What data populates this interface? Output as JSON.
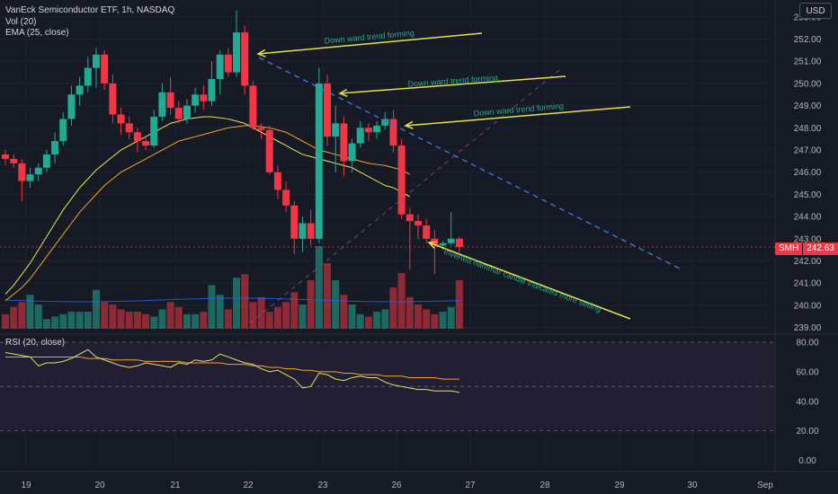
{
  "header": {
    "title": "VanEck Semiconductor ETF, 1h, NASDAQ",
    "indicators": [
      "Vol (20)",
      "EMA (25, close)"
    ],
    "currency_button": "USD"
  },
  "rsi_panel": {
    "label": "RSI (20, close)"
  },
  "price_tag": {
    "symbol": "SMH",
    "value": "242.63"
  },
  "colors": {
    "up": "#22ab94",
    "down": "#f23645",
    "ema": "#f5a623",
    "ema_fast": "#e8e35a",
    "trend": "#3b73e6",
    "arrow": "#e6e23a",
    "annotation": "#22ab94",
    "rsi": "#e8e35a",
    "rsi_ma": "#f5a623"
  },
  "chart_data": {
    "type": "candlestick",
    "title": "VanEck Semiconductor ETF, 1h, NASDAQ",
    "x_axis_labels": [
      "19",
      "20",
      "21",
      "22",
      "23",
      "26",
      "27",
      "28",
      "29",
      "30",
      "Sep"
    ],
    "y_axis": {
      "ticks": [
        "253.00",
        "252.00",
        "251.00",
        "250.00",
        "249.00",
        "248.00",
        "247.00",
        "246.00",
        "245.00",
        "244.00",
        "243.00",
        "242.00",
        "241.00",
        "240.00",
        "239.00"
      ],
      "range": [
        238.7,
        253.6
      ]
    },
    "rsi_axis": {
      "ticks": [
        "80.00",
        "60.00",
        "40.00",
        "20.00",
        "0.00"
      ],
      "bands": [
        20,
        50,
        80
      ]
    },
    "candles": [
      [
        246.8,
        247.0,
        246.3,
        246.6
      ],
      [
        246.6,
        246.8,
        246.2,
        246.4
      ],
      [
        246.4,
        246.6,
        244.7,
        245.6
      ],
      [
        245.6,
        246.2,
        245.3,
        245.9
      ],
      [
        245.9,
        246.4,
        245.6,
        246.2
      ],
      [
        246.2,
        247.0,
        246.0,
        246.8
      ],
      [
        246.8,
        247.8,
        246.4,
        247.4
      ],
      [
        247.4,
        248.7,
        247.2,
        248.4
      ],
      [
        248.4,
        249.9,
        248.1,
        249.5
      ],
      [
        249.5,
        250.3,
        249.0,
        249.9
      ],
      [
        249.9,
        251.2,
        249.6,
        250.7
      ],
      [
        250.7,
        251.6,
        249.8,
        251.3
      ],
      [
        251.3,
        251.5,
        249.7,
        250.0
      ],
      [
        250.0,
        250.4,
        248.2,
        248.6
      ],
      [
        248.6,
        248.9,
        247.7,
        248.2
      ],
      [
        248.2,
        248.5,
        247.5,
        247.8
      ],
      [
        247.8,
        248.0,
        246.9,
        247.4
      ],
      [
        247.4,
        247.6,
        247.0,
        247.2
      ],
      [
        247.2,
        248.8,
        247.1,
        248.5
      ],
      [
        248.5,
        250.0,
        248.3,
        249.6
      ],
      [
        249.6,
        250.3,
        248.6,
        248.9
      ],
      [
        248.9,
        249.2,
        248.2,
        248.4
      ],
      [
        248.4,
        249.3,
        248.2,
        249.0
      ],
      [
        249.0,
        249.8,
        248.7,
        249.5
      ],
      [
        249.5,
        249.9,
        248.8,
        249.2
      ],
      [
        249.2,
        251.0,
        249.0,
        250.2
      ],
      [
        250.2,
        251.5,
        249.5,
        251.3
      ],
      [
        251.3,
        251.6,
        250.3,
        250.5
      ],
      [
        250.5,
        253.3,
        250.3,
        252.3
      ],
      [
        252.3,
        252.6,
        249.5,
        249.9
      ],
      [
        249.9,
        250.1,
        247.9,
        248.0
      ],
      [
        248.0,
        248.2,
        247.5,
        247.9
      ],
      [
        247.9,
        248.1,
        245.9,
        246.0
      ],
      [
        246.0,
        246.3,
        244.8,
        245.2
      ],
      [
        245.2,
        245.6,
        244.2,
        244.5
      ],
      [
        244.5,
        244.7,
        242.3,
        243.0
      ],
      [
        243.0,
        244.0,
        242.4,
        243.7
      ],
      [
        243.7,
        244.3,
        242.7,
        243.0
      ],
      [
        243.0,
        250.7,
        242.8,
        250.0
      ],
      [
        250.0,
        250.4,
        247.2,
        247.6
      ],
      [
        247.6,
        249.0,
        246.0,
        248.2
      ],
      [
        248.2,
        248.5,
        245.8,
        246.5
      ],
      [
        246.5,
        247.5,
        246.0,
        247.3
      ],
      [
        247.3,
        248.3,
        247.1,
        248.0
      ],
      [
        248.0,
        248.2,
        247.4,
        247.8
      ],
      [
        247.8,
        248.3,
        247.5,
        248.1
      ],
      [
        248.1,
        248.7,
        247.9,
        248.4
      ],
      [
        248.4,
        248.8,
        246.9,
        247.2
      ],
      [
        247.2,
        247.5,
        243.9,
        244.1
      ],
      [
        244.1,
        244.4,
        241.6,
        243.8
      ],
      [
        243.8,
        244.1,
        243.0,
        243.6
      ],
      [
        243.6,
        243.9,
        242.8,
        243.0
      ],
      [
        243.0,
        243.4,
        241.4,
        242.7
      ],
      [
        242.7,
        242.9,
        242.5,
        242.8
      ],
      [
        242.8,
        244.2,
        242.7,
        243.0
      ],
      [
        243.0,
        243.1,
        242.4,
        242.63
      ]
    ],
    "volumes": [
      12,
      18,
      22,
      28,
      20,
      8,
      10,
      12,
      14,
      14,
      14,
      32,
      22,
      20,
      16,
      14,
      14,
      12,
      10,
      16,
      22,
      18,
      12,
      12,
      14,
      36,
      28,
      16,
      42,
      45,
      22,
      26,
      14,
      18,
      22,
      30,
      20,
      40,
      68,
      54,
      40,
      28,
      20,
      12,
      10,
      14,
      16,
      34,
      46,
      26,
      20,
      16,
      12,
      14,
      18,
      40
    ],
    "ema_slow": [
      240.2,
      240.5,
      240.8,
      241.2,
      241.7,
      242.2,
      242.7,
      243.2,
      243.7,
      244.2,
      244.6,
      245.0,
      245.4,
      245.7,
      246.0,
      246.2,
      246.4,
      246.6,
      246.8,
      247.0,
      247.2,
      247.4,
      247.5,
      247.6,
      247.7,
      247.8,
      247.9,
      248.0,
      248.05,
      248.1,
      248.1,
      248.05,
      248.0,
      247.9,
      247.8,
      247.6,
      247.4,
      247.2,
      247.0,
      246.9,
      246.8,
      246.7,
      246.6,
      246.5,
      246.4,
      246.35,
      246.3,
      246.2,
      246.1,
      245.9
    ],
    "ema_fast": [
      240.5,
      240.9,
      241.4,
      241.9,
      242.5,
      243.1,
      243.7,
      244.3,
      244.8,
      245.3,
      245.7,
      246.1,
      246.4,
      246.7,
      247.0,
      247.2,
      247.4,
      247.6,
      247.8,
      248.0,
      248.2,
      248.3,
      248.4,
      248.45,
      248.5,
      248.5,
      248.45,
      248.4,
      248.3,
      248.2,
      248.0,
      247.8,
      247.6,
      247.4,
      247.2,
      247.0,
      246.8,
      246.7,
      246.6,
      246.5,
      246.4,
      246.3,
      246.2,
      246.0,
      245.8,
      245.6,
      245.4,
      245.3,
      245.1,
      244.9
    ],
    "rsi": [
      73,
      72,
      71,
      70,
      64,
      66,
      66,
      67,
      69,
      72,
      75,
      70,
      68,
      66,
      64,
      63,
      64,
      66,
      65,
      64,
      63,
      66,
      65,
      68,
      67,
      68,
      72,
      70,
      68,
      66,
      65,
      62,
      60,
      61,
      58,
      55,
      49,
      50,
      59,
      58,
      55,
      54,
      56,
      57,
      56,
      56,
      53,
      51,
      50,
      49,
      48,
      48,
      47,
      47,
      47,
      46
    ],
    "rsi_ma": [
      70,
      70,
      70,
      70,
      70,
      70,
      70,
      70,
      70,
      70,
      69,
      69,
      69,
      68,
      68,
      68,
      68,
      67,
      67,
      67,
      67,
      67,
      66,
      66,
      66,
      66,
      66,
      65,
      65,
      65,
      64,
      64,
      63,
      63,
      62,
      62,
      61,
      61,
      60,
      60,
      60,
      59,
      59,
      58,
      58,
      58,
      57,
      57,
      57,
      56,
      56,
      56,
      56,
      55,
      55,
      55
    ],
    "annotations": [
      "Down ward trend forming",
      "Down ward trend forming",
      "Down ward trend forming",
      "Inverted hammar candle indicates more selling"
    ]
  }
}
